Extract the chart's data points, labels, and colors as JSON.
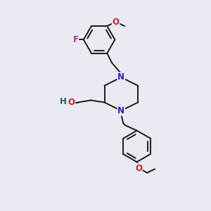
{
  "bg_color": "#eaeaf2",
  "bond_color": "#1a1a1a",
  "N_color": "#2020cc",
  "O_color": "#cc2020",
  "F_color": "#cc20aa",
  "H_color": "#1a6060",
  "font_size": 8.5,
  "line_width": 1.4,
  "figsize": [
    3.0,
    3.0
  ],
  "dpi": 100,
  "xlim": [
    0,
    10
  ],
  "ylim": [
    0,
    10
  ]
}
